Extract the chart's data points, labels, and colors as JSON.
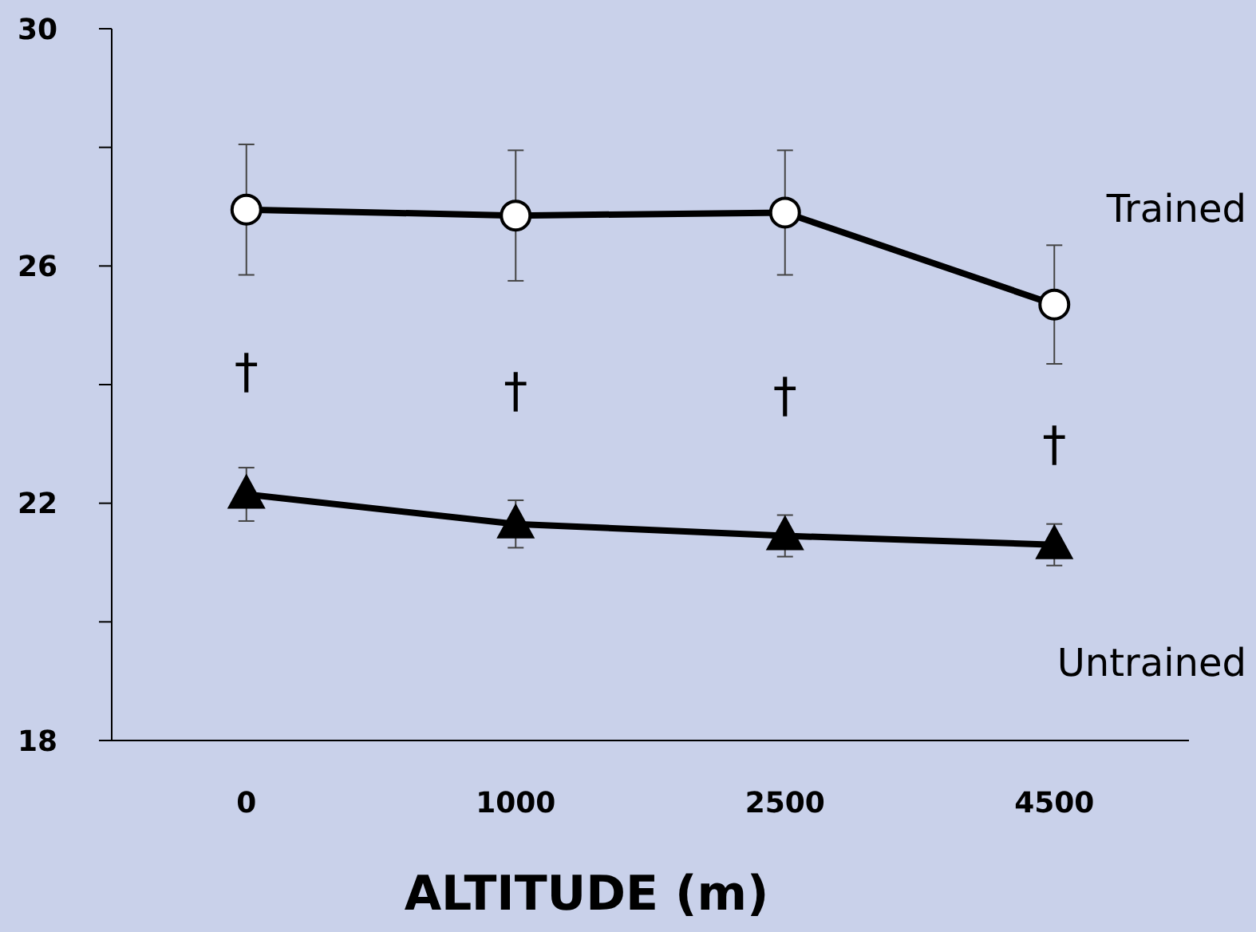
{
  "chart_data": {
    "type": "line",
    "xlabel": "ALTITUDE (m)",
    "categories": [
      "0",
      "1000",
      "2500",
      "4500"
    ],
    "series": [
      {
        "name": "Trained",
        "color": "#000000",
        "marker": "circle",
        "values": [
          26.95,
          26.85,
          26.9,
          25.35
        ],
        "errors": [
          1.1,
          1.1,
          1.05,
          1.0
        ]
      },
      {
        "name": "Untrained",
        "color": "#000000",
        "marker": "triangle",
        "values": [
          22.15,
          21.65,
          21.45,
          21.3
        ],
        "errors": [
          0.45,
          0.4,
          0.35,
          0.35
        ]
      }
    ],
    "ylim": [
      18,
      30
    ],
    "yticks": [
      18,
      {
        "value": 20,
        "label": null
      },
      22,
      {
        "value": 24,
        "label": null
      },
      26,
      {
        "value": 28,
        "label": null
      },
      30
    ],
    "annotations": [
      "†",
      "†",
      "†",
      "†"
    ],
    "grid": false,
    "line_style": "solid"
  }
}
